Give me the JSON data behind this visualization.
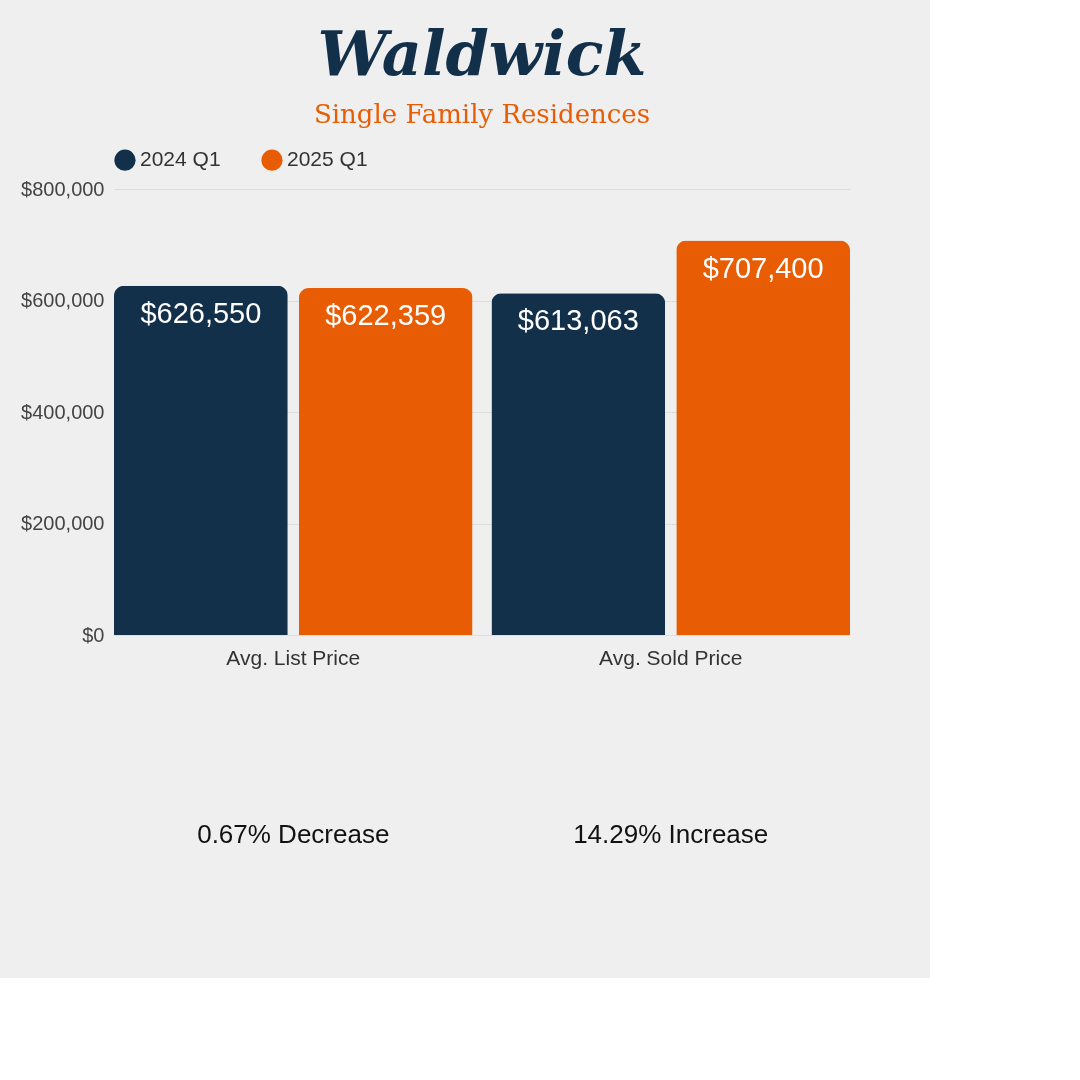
{
  "chart_data": {
    "type": "bar",
    "title": "Waldwick",
    "subtitle": "Single Family Residences",
    "categories": [
      "Avg. List Price",
      "Avg. Sold Price"
    ],
    "series": [
      {
        "name": "2024 Q1",
        "color": "#13304a",
        "values": [
          626550,
          613063
        ],
        "value_labels": [
          "$626,550",
          "$613,063"
        ]
      },
      {
        "name": "2025 Q1",
        "color": "#e85d04",
        "values": [
          622359,
          707400
        ],
        "value_labels": [
          "$622,359",
          "$707,400"
        ]
      }
    ],
    "ylim": [
      0,
      800000
    ],
    "yticks": [
      {
        "value": 0,
        "label": "$0"
      },
      {
        "value": 200000,
        "label": "$200,000"
      },
      {
        "value": 400000,
        "label": "$400,000"
      },
      {
        "value": 600000,
        "label": "$600,000"
      },
      {
        "value": 800000,
        "label": "$800,000"
      }
    ],
    "grid": "y",
    "legend": "top",
    "annotations": [
      "0.67% Decrease",
      "14.29% Increase"
    ]
  }
}
